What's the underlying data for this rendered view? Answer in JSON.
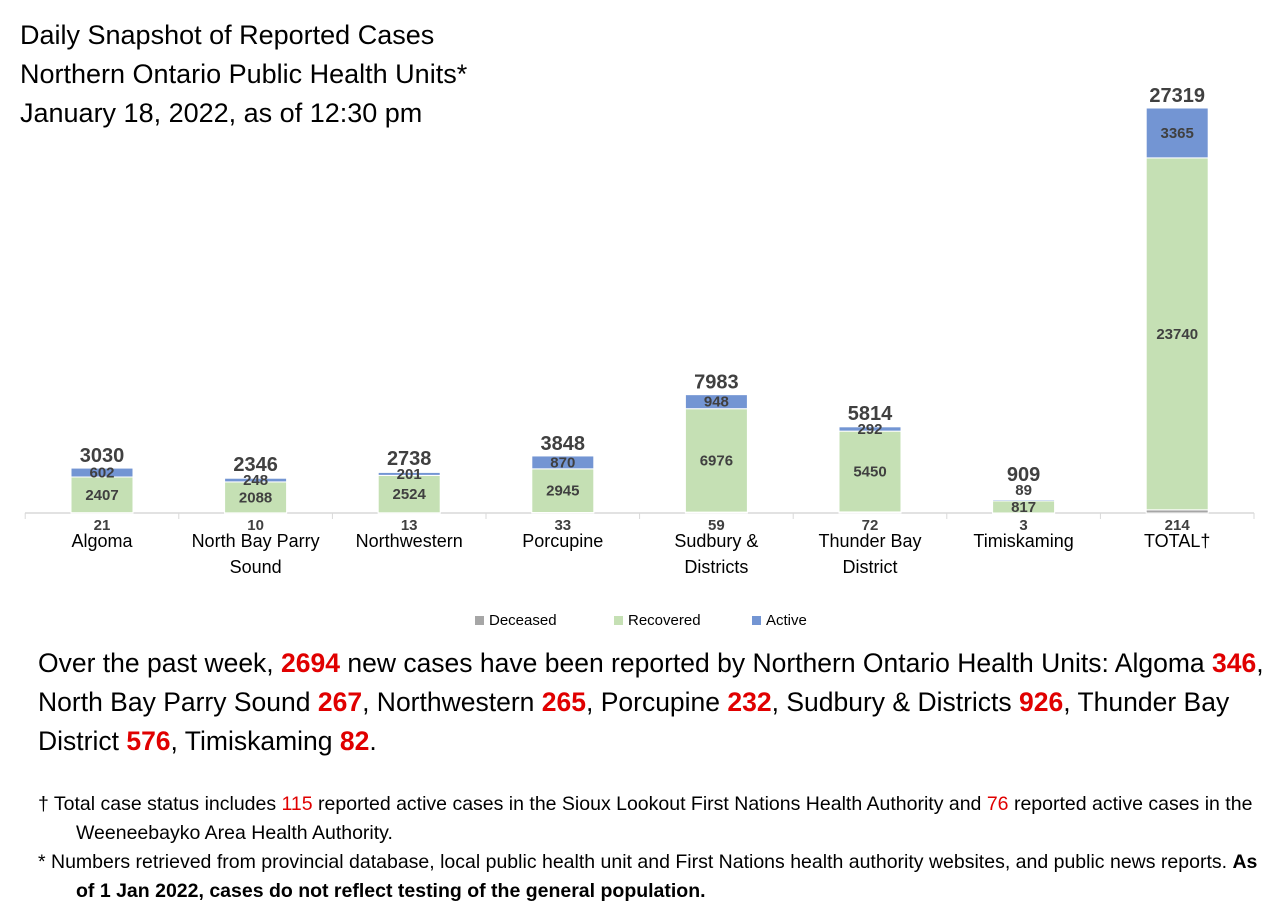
{
  "title_lines": [
    "Daily Snapshot of Reported Cases",
    "Northern Ontario Public Health Units*",
    "January 18, 2022, as of 12:30 pm"
  ],
  "colors": {
    "deceased": "#a6a6a6",
    "recovered": "#c5e0b4",
    "active": "#7395d3",
    "highlight": "#e00000"
  },
  "chart_data": {
    "type": "bar",
    "stacked": true,
    "categories": [
      [
        "Algoma"
      ],
      [
        "North Bay Parry",
        "Sound"
      ],
      [
        "Northwestern"
      ],
      [
        "Porcupine"
      ],
      [
        "Sudbury &",
        "Districts"
      ],
      [
        "Thunder Bay",
        "District"
      ],
      [
        "Timiskaming"
      ],
      [
        "TOTAL†"
      ]
    ],
    "series": [
      {
        "name": "Deceased",
        "values": [
          21,
          10,
          13,
          33,
          59,
          72,
          3,
          214
        ]
      },
      {
        "name": "Recovered",
        "values": [
          2407,
          2088,
          2524,
          2945,
          6976,
          5450,
          817,
          23740
        ]
      },
      {
        "name": "Active",
        "values": [
          602,
          248,
          201,
          870,
          948,
          292,
          89,
          3365
        ]
      }
    ],
    "totals": [
      3030,
      2346,
      2738,
      3848,
      7983,
      5814,
      909,
      27319
    ],
    "ylim": [
      0,
      27319
    ],
    "grid": false,
    "legend": "bottom"
  },
  "summary": {
    "p1": "Over the past week, ",
    "total_new": "2694",
    "p2": " new cases have been reported by Northern Ontario Health Units: Algoma ",
    "algoma": "346",
    "p3": ", North Bay Parry Sound ",
    "north_bay": "267",
    "p4": ", Northwestern ",
    "northwestern": "265",
    "p5": ", Porcupine ",
    "porcupine": "232",
    "p6": ", Sudbury & Districts ",
    "sudbury": "926",
    "p7": ", Thunder Bay District ",
    "thunder_bay": "576",
    "p8": ", Timiskaming ",
    "timiskaming": "82",
    "p9": "."
  },
  "notes": {
    "n1_a": "† Total case status includes ",
    "n1_sioux": "115",
    "n1_b": " reported active cases in the Sioux Lookout First Nations Health Authority and ",
    "n1_weeneebayko": "76",
    "n1_c": " reported active cases in the Weeneebayko Area Health Authority.",
    "n2_a": "* Numbers retrieved from provincial database, local public health unit and First Nations health authority websites, and public news reports. ",
    "n2_bold": "As of 1 Jan 2022, cases do not reflect testing of the general population."
  }
}
